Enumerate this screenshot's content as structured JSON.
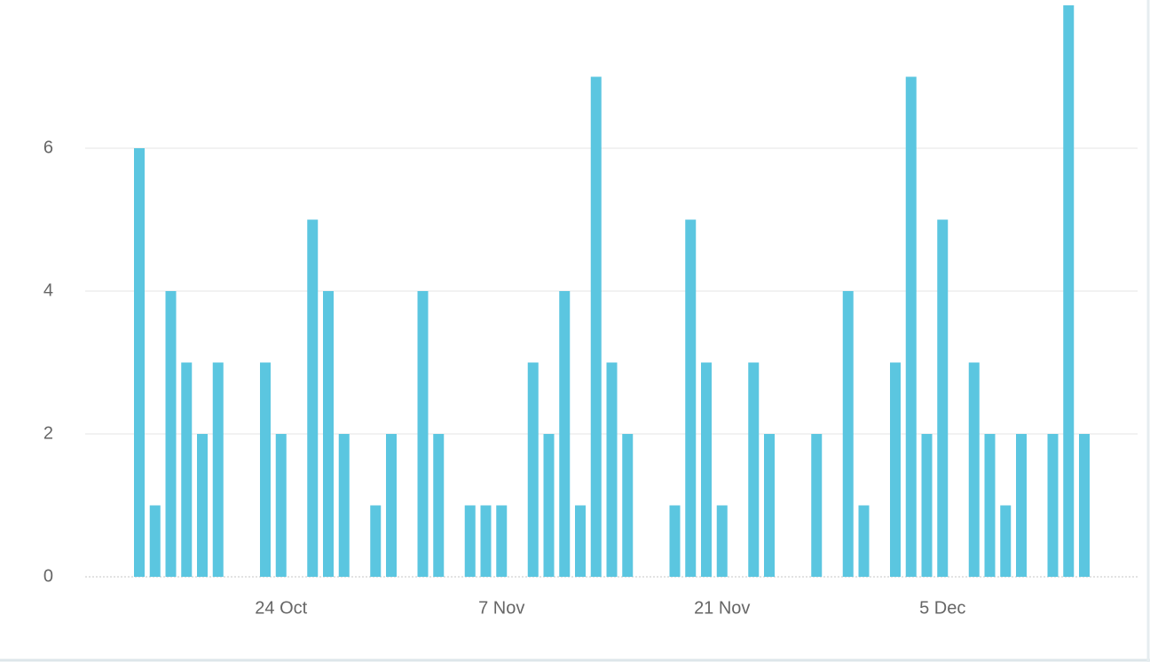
{
  "chart_data": {
    "type": "bar",
    "categories": [
      null,
      null,
      null,
      null,
      null,
      null,
      null,
      null,
      null,
      "24 Oct",
      null,
      null,
      null,
      null,
      null,
      null,
      null,
      null,
      null,
      null,
      null,
      null,
      null,
      "7 Nov",
      null,
      null,
      null,
      null,
      null,
      null,
      null,
      null,
      null,
      null,
      null,
      null,
      null,
      "21 Nov",
      null,
      null,
      null,
      null,
      null,
      null,
      null,
      null,
      null,
      null,
      null,
      null,
      null,
      "5 Dec",
      null,
      null,
      null,
      null,
      null,
      null,
      null,
      null,
      null
    ],
    "values": [
      6,
      1,
      4,
      3,
      2,
      3,
      0,
      0,
      3,
      2,
      0,
      5,
      4,
      2,
      0,
      1,
      2,
      0,
      4,
      2,
      0,
      1,
      1,
      1,
      0,
      3,
      2,
      4,
      1,
      7,
      3,
      2,
      0,
      0,
      1,
      5,
      3,
      1,
      0,
      3,
      2,
      0,
      0,
      2,
      0,
      4,
      1,
      0,
      3,
      7,
      2,
      5,
      0,
      3,
      2,
      1,
      2,
      0,
      2,
      8,
      2
    ],
    "color": "#5bc6e0",
    "ylim": [
      0,
      8
    ],
    "yticks": [
      0,
      2,
      4,
      6
    ],
    "grid": true
  }
}
